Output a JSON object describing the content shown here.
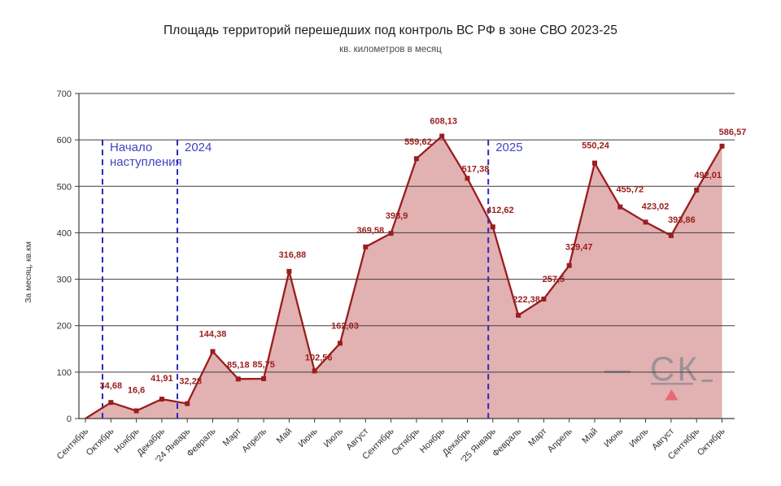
{
  "chart_data": {
    "type": "area",
    "title": "Площадь территорий перешедших под контроль ВС РФ в зоне СВО 2023-25",
    "subtitle": "кв. километров в месяц",
    "ylabel": "За месяц, кв.км",
    "ylim": [
      0,
      700
    ],
    "ytick_step": 100,
    "grid": "horizontal",
    "legend": "none",
    "categories": [
      "Сентябрь",
      "Октябрь",
      "Ноябрь",
      "Декабрь",
      "'24 Январь",
      "Февраль",
      "Март",
      "Апрель",
      "Май",
      "Июнь",
      "Июль",
      "Август",
      "Сентябрь",
      "Октябрь",
      "Ноябрь",
      "Декабрь",
      "'25 Январь",
      "Февраль",
      "Март",
      "Апрель",
      "Май",
      "Июнь",
      "Июль",
      "Август",
      "Сентябрь",
      "Октябрь"
    ],
    "values": [
      0,
      34.68,
      16.6,
      41.91,
      32.28,
      144.38,
      85.18,
      85.75,
      316.88,
      102.56,
      162.03,
      369.58,
      398.9,
      559.62,
      608.13,
      517.38,
      412.62,
      222.38,
      257.5,
      329.47,
      550.24,
      455.72,
      423.02,
      393.86,
      492.01,
      586.57
    ],
    "point_labels": [
      "",
      "34,68",
      "16,6",
      "41,91",
      "32,28",
      "144,38",
      "85,18",
      "85,75",
      "316,88",
      "102,56",
      "162,03",
      "369,58",
      "398,9",
      "559,62",
      "608,13",
      "517,38",
      "412,62",
      "222,38",
      "257,5",
      "329,47",
      "550,24",
      "455,72",
      "423,02",
      "393,86",
      "492,01",
      "586,57"
    ],
    "vlines": [
      {
        "x_index": 0.67,
        "label": "Начало наступления",
        "label_lines": [
          "Начало",
          "наступления"
        ]
      },
      {
        "x_index": 3.61,
        "label": "2024",
        "label_lines": [
          "2024"
        ]
      },
      {
        "x_index": 15.82,
        "label": "2025",
        "label_lines": [
          "2025"
        ]
      }
    ],
    "watermark": {
      "text": "СК",
      "triangle": "▲"
    },
    "colors": {
      "line": "#991e1e",
      "fill": "#e2b1b1",
      "point_label": "#991e1e",
      "vline": "#2a2ac0",
      "vline_label": "#4343c4",
      "grid": "#3d3d3d",
      "axis_text": "#333333",
      "watermark_gray": "#8f8d94",
      "watermark_triangle": "#e4636f",
      "title": "#1c1c1c",
      "subtitle": "#4a4a4a"
    }
  }
}
